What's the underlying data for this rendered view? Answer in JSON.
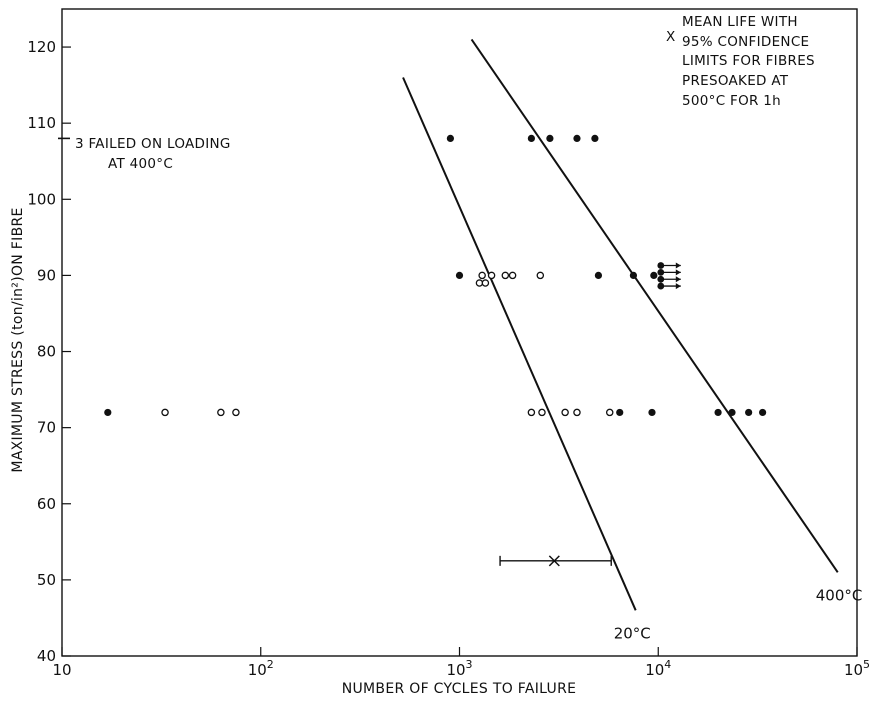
{
  "chart_data": {
    "type": "scatter",
    "xlabel": "NUMBER OF CYCLES TO FAILURE",
    "ylabel": "MAXIMUM STRESS (ton/in²)ON FIBRE",
    "x_scale": "log",
    "xlim": [
      10,
      100000
    ],
    "ylim": [
      40,
      125
    ],
    "x_ticks": [
      {
        "value": 10,
        "base": "10",
        "exp": ""
      },
      {
        "value": 100,
        "base": "10",
        "exp": "2"
      },
      {
        "value": 1000,
        "base": "10",
        "exp": "3"
      },
      {
        "value": 10000,
        "base": "10",
        "exp": "4"
      },
      {
        "value": 100000,
        "base": "10",
        "exp": "5"
      }
    ],
    "y_ticks": [
      40,
      50,
      60,
      70,
      80,
      90,
      100,
      110,
      120
    ],
    "grid": false,
    "series": [
      {
        "marker": "open-circle",
        "points": [
          [
            33,
            72
          ],
          [
            63,
            72
          ],
          [
            75,
            72
          ],
          [
            1300,
            90
          ],
          [
            1260,
            89
          ],
          [
            1350,
            89
          ],
          [
            1450,
            90
          ],
          [
            1700,
            90
          ],
          [
            1850,
            90
          ],
          [
            2550,
            90
          ],
          [
            2300,
            72
          ],
          [
            2600,
            72
          ],
          [
            3400,
            72
          ],
          [
            3900,
            72
          ],
          [
            5700,
            72
          ]
        ]
      },
      {
        "marker": "filled-circle",
        "points": [
          [
            17,
            72
          ],
          [
            900,
            108
          ],
          [
            2300,
            108
          ],
          [
            2850,
            108
          ],
          [
            3900,
            108
          ],
          [
            4800,
            108
          ],
          [
            1000,
            90
          ],
          [
            5000,
            90
          ],
          [
            7500,
            90
          ],
          [
            9500,
            90
          ],
          [
            6400,
            72
          ],
          [
            9300,
            72
          ],
          [
            20000,
            72
          ],
          [
            23500,
            72
          ],
          [
            28500,
            72
          ],
          [
            33500,
            72
          ]
        ]
      },
      {
        "marker": "filled-circle-arrow",
        "points": [
          [
            10300,
            91.3
          ],
          [
            10300,
            90.4
          ],
          [
            10300,
            89.5
          ],
          [
            10300,
            88.6
          ]
        ]
      }
    ],
    "fit_lines": [
      {
        "label": "20°C",
        "points": [
          [
            520,
            116
          ],
          [
            7700,
            46
          ]
        ]
      },
      {
        "label": "400°C",
        "points": [
          [
            1150,
            121
          ],
          [
            80000,
            51
          ]
        ]
      }
    ],
    "interval": {
      "y": 52.5,
      "low": 1600,
      "mean": 3000,
      "high": 5800
    },
    "annotations": {
      "legend_lines": [
        "MEAN LIFE WITH",
        "95% CONFIDENCE",
        "LIMITS FOR FIBRES",
        "PRESOAKED AT",
        "500°C FOR 1h"
      ],
      "legend_marker": "X",
      "failed_lines": [
        "3 FAILED ON LOADING",
        "AT 400°C"
      ],
      "failed_stress": 108
    }
  }
}
